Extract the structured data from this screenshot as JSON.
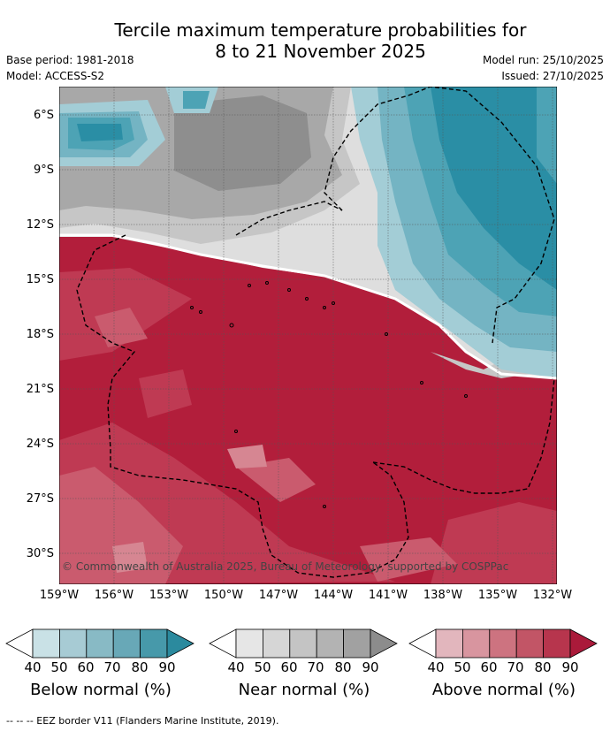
{
  "title": {
    "line1": "Tercile maximum temperature probabilities for",
    "line2": "8 to 21 November 2025"
  },
  "meta": {
    "base_period": "Base period: 1981-2018",
    "model": "Model: ACCESS-S2",
    "model_run": "Model run: 25/10/2025",
    "issued": "Issued: 27/10/2025"
  },
  "map": {
    "lat_labels": [
      "6°S",
      "9°S",
      "12°S",
      "15°S",
      "18°S",
      "21°S",
      "24°S",
      "27°S",
      "30°S"
    ],
    "lon_labels": [
      "159°W",
      "156°W",
      "153°W",
      "150°W",
      "147°W",
      "144°W",
      "141°W",
      "138°W",
      "135°W",
      "132°W"
    ],
    "copyright": "© Commonwealth of Australia 2025, Bureau of Meteorology, supported by COSPPac",
    "colors": {
      "above_80": "#b21e3b",
      "above_70": "#bf3a53",
      "above_60": "#ca5b6e",
      "above_50": "#d68692",
      "near_70": "#8e8e8e",
      "near_60": "#a8a8a8",
      "near_50": "#c6c6c6",
      "near_40": "#dedede",
      "below_70": "#2a8ea5",
      "below_60": "#4da3b5",
      "below_50": "#74b4c3",
      "below_40": "#a3cdd6"
    }
  },
  "legend": [
    {
      "title": "Below normal (%)",
      "ticks": [
        "40",
        "50",
        "60",
        "70",
        "80",
        "90"
      ],
      "colors": [
        "#c9e1e6",
        "#a7cbd4",
        "#88bac5",
        "#68a8b7",
        "#4799aa",
        "#2b8a9e"
      ]
    },
    {
      "title": "Near normal (%)",
      "ticks": [
        "40",
        "50",
        "60",
        "70",
        "80",
        "90"
      ],
      "colors": [
        "#e6e6e6",
        "#d6d6d6",
        "#c4c4c4",
        "#b3b3b3",
        "#a1a1a1",
        "#8c8c8c"
      ]
    },
    {
      "title": "Above normal (%)",
      "ticks": [
        "40",
        "50",
        "60",
        "70",
        "80",
        "90"
      ],
      "colors": [
        "#e2b6bd",
        "#d8959f",
        "#cd7380",
        "#c25566",
        "#b7354d",
        "#aa1a3a"
      ]
    }
  ],
  "footnote": "--  --  -- EEZ border V11 (Flanders Marine Institute, 2019)."
}
